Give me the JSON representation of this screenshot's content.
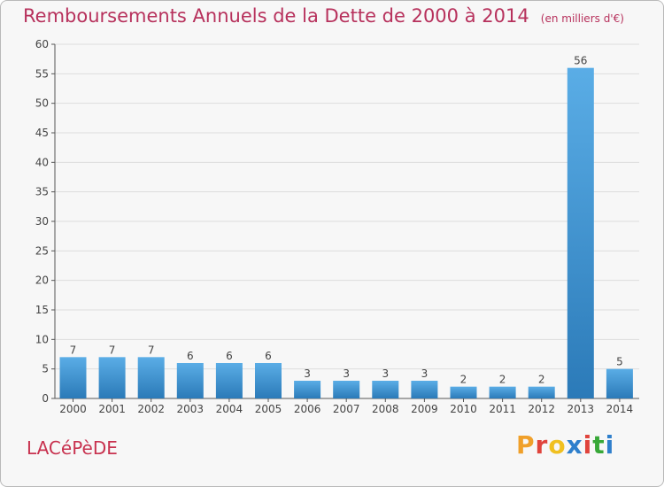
{
  "header": {
    "title": "Remboursements Annuels de la Dette de 2000 à 2014",
    "unit": "(en milliers d'€)"
  },
  "footer": {
    "town": "LACéPèDE",
    "brand_letters": [
      "P",
      "r",
      "o",
      "x",
      "i",
      "t",
      "i"
    ],
    "brand_colors": [
      "#f0a02a",
      "#e0443c",
      "#f0c020",
      "#2e7fcc",
      "#e0443c",
      "#38a838",
      "#2e7fcc"
    ]
  },
  "colors": {
    "bar_top": "#5aade6",
    "bar_bottom": "#2b7ab8",
    "grid": "#dddddd",
    "axis": "#555555",
    "title": "#b7315c"
  },
  "chart_data": {
    "type": "bar",
    "title": "Remboursements Annuels de la Dette de 2000 à 2014",
    "xlabel": "",
    "ylabel": "",
    "ylim": [
      0,
      60
    ],
    "yticks": [
      0,
      5,
      10,
      15,
      20,
      25,
      30,
      35,
      40,
      45,
      50,
      55,
      60
    ],
    "categories": [
      "2000",
      "2001",
      "2002",
      "2003",
      "2004",
      "2005",
      "2006",
      "2007",
      "2008",
      "2009",
      "2010",
      "2011",
      "2012",
      "2013",
      "2014"
    ],
    "values": [
      7,
      7,
      7,
      6,
      6,
      6,
      3,
      3,
      3,
      3,
      2,
      2,
      2,
      56,
      5
    ],
    "labels": [
      "7",
      "7",
      "7",
      "6",
      "6",
      "6",
      "3",
      "3",
      "3",
      "3",
      "2",
      "2",
      "2",
      "56",
      "5"
    ]
  }
}
